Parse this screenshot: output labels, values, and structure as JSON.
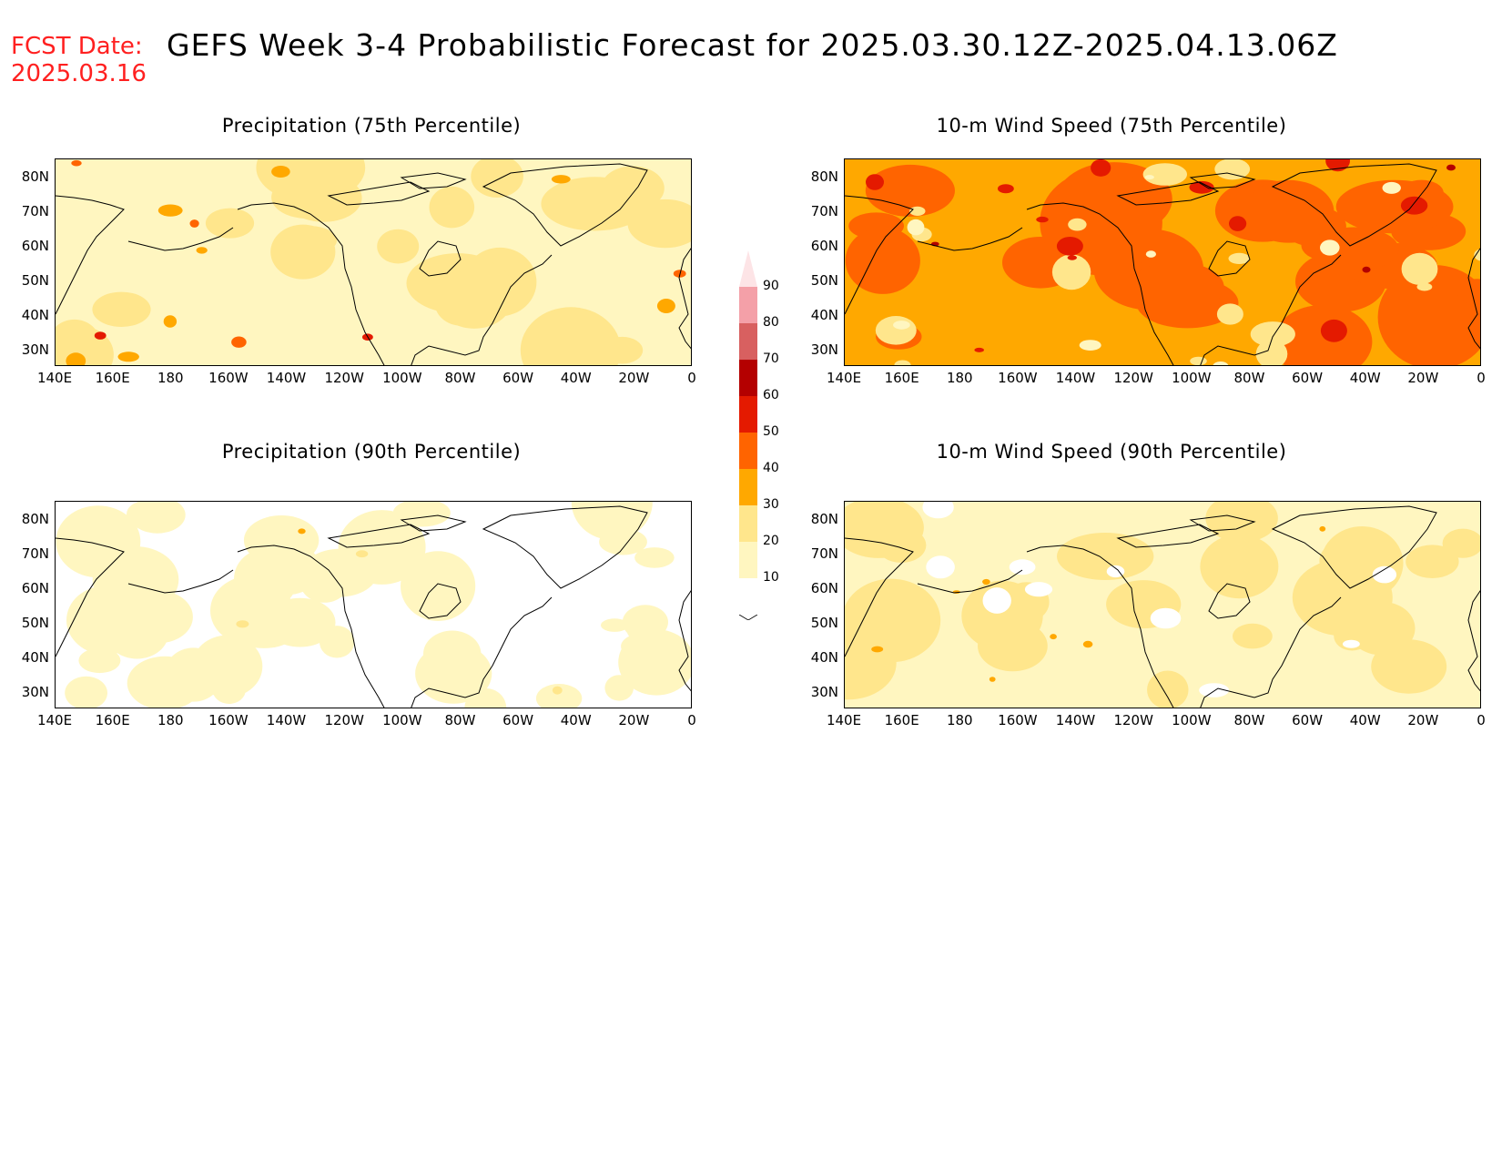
{
  "header": {
    "fcst_label": "FCST Date:",
    "fcst_date": "2025.03.16",
    "title": "GEFS Week 3-4 Probabilistic Forecast for 2025.03.30.12Z-2025.04.13.06Z"
  },
  "axes": {
    "lat_ticks": [
      "80N",
      "70N",
      "60N",
      "50N",
      "40N",
      "30N"
    ],
    "lon_ticks": [
      "140E",
      "160E",
      "180",
      "160W",
      "140W",
      "120W",
      "100W",
      "80W",
      "60W",
      "40W",
      "20W",
      "0"
    ]
  },
  "panels": [
    {
      "title": "Precipitation (75th Percentile)",
      "base": "light-yellow",
      "intensity": "moderate"
    },
    {
      "title": "10-m Wind Speed (75th Percentile)",
      "base": "orange",
      "intensity": "high"
    },
    {
      "title": "Precipitation (90th Percentile)",
      "base": "white",
      "intensity": "low"
    },
    {
      "title": "10-m Wind Speed (90th Percentile)",
      "base": "pale-yellow",
      "intensity": "low-moderate"
    }
  ],
  "colorbar": {
    "levels": [
      "10",
      "20",
      "30",
      "40",
      "50",
      "60",
      "70",
      "80",
      "90"
    ],
    "colors": [
      "#fff6c0",
      "#ffe68c",
      "#ffa800",
      "#ff6400",
      "#e41a00",
      "#b40000",
      "#d86060",
      "#f4a0a8",
      "#fde4e6"
    ]
  }
}
